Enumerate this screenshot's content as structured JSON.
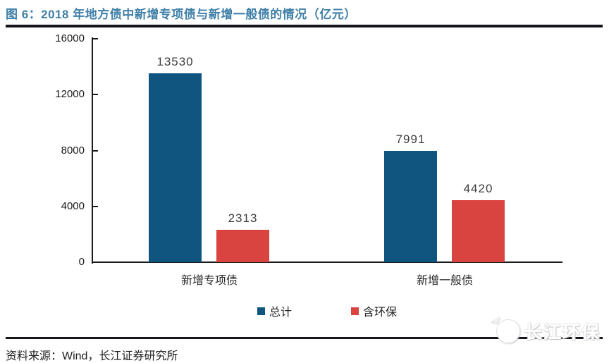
{
  "figure": {
    "title": "图 6：2018 年地方债中新增专项债与新增一般债的情况（亿元）",
    "source": "资料来源：Wind，长江证券研究所",
    "watermark": "长江环保"
  },
  "chart_data": {
    "type": "bar",
    "title": "2018 年地方债中新增专项债与新增一般债的情况（亿元）",
    "categories": [
      "新增专项债",
      "新增一般债"
    ],
    "series": [
      {
        "name": "总计",
        "color": "#0F5580",
        "values": [
          13530,
          7991
        ]
      },
      {
        "name": "含环保",
        "color": "#D94340",
        "values": [
          2313,
          4420
        ]
      }
    ],
    "xlabel": "",
    "ylabel": "",
    "ylim": [
      0,
      16000
    ],
    "yticks": [
      0,
      4000,
      8000,
      12000,
      16000
    ],
    "grid": false,
    "legend_position": "bottom",
    "value_labels": true
  },
  "colors": {
    "title": "#3F7FA8",
    "rule": "#15151B",
    "axis": "#1A1A1A",
    "bar_total": "#0F5580",
    "bar_env": "#D94340"
  }
}
